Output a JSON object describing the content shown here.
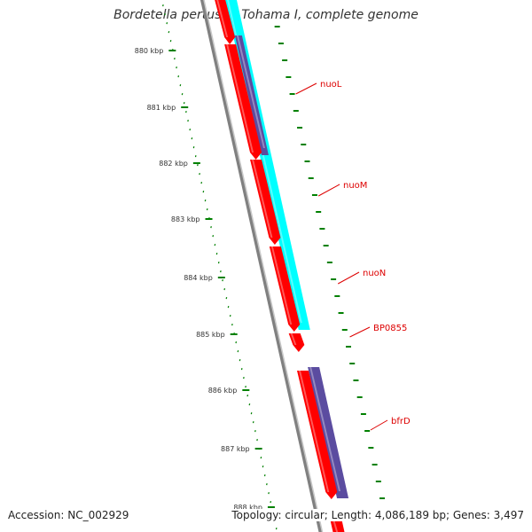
{
  "title": "Bordetella pertussis Tohama I, complete genome",
  "footer": {
    "accession": "Accession: NC_002929",
    "info": "Topology: circular; Length: 4,086,189 bp; Genes: 3,497"
  },
  "colors": {
    "backbone": "#808080",
    "cds": "#ff0000",
    "cds_dark": "#990000",
    "orf_cyan": "#00ffff",
    "orf_purple": "#5b4ca0",
    "ticks": "#008000",
    "label": "#dd0000"
  },
  "scale": {
    "ticks": [
      {
        "label": "880 kbp"
      },
      {
        "label": "881 kbp"
      },
      {
        "label": "882 kbp"
      },
      {
        "label": "883 kbp"
      },
      {
        "label": "884 kbp"
      },
      {
        "label": "885 kbp"
      },
      {
        "label": "886 kbp"
      },
      {
        "label": "887 kbp"
      },
      {
        "label": "888 kbp"
      }
    ]
  },
  "gene_labels": [
    {
      "name": "nuoL"
    },
    {
      "name": "nuoM"
    },
    {
      "name": "nuoN"
    },
    {
      "name": "BP0855"
    },
    {
      "name": "bfrD"
    }
  ]
}
